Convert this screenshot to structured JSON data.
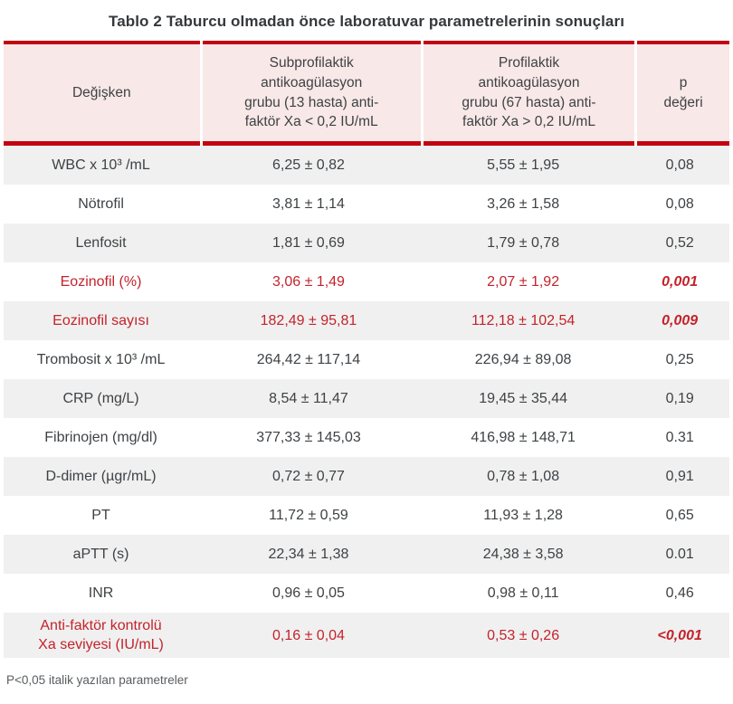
{
  "title": "Tablo 2 Taburcu olmadan önce laboratuvar parametrelerinin sonuçları",
  "table": {
    "columns": [
      {
        "label": "Değişken"
      },
      {
        "label": "Subprofilaktik\nantikoagülasyon\ngrubu (13 hasta) anti-\nfaktör Xa < 0,2 IU/mL"
      },
      {
        "label": "Profilaktik\nantikoagülasyon\ngrubu (67 hasta) anti-\nfaktör Xa > 0,2 IU/mL"
      },
      {
        "label": "p\ndeğeri"
      }
    ],
    "rows": [
      {
        "label": "WBC x 10³ /mL",
        "group1": "6,25 ± 0,82",
        "group2": "5,55 ± 1,95",
        "p": "0,08",
        "highlight": false
      },
      {
        "label": "Nötrofil",
        "group1": "3,81 ± 1,14",
        "group2": "3,26 ± 1,58",
        "p": "0,08",
        "highlight": false
      },
      {
        "label": "Lenfosit",
        "group1": "1,81 ± 0,69",
        "group2": "1,79 ± 0,78",
        "p": "0,52",
        "highlight": false
      },
      {
        "label": "Eozinofil (%)",
        "group1": "3,06 ± 1,49",
        "group2": "2,07 ± 1,92",
        "p": "0,001",
        "highlight": true
      },
      {
        "label": "Eozinofil sayısı",
        "group1": "182,49 ± 95,81",
        "group2": "112,18 ± 102,54",
        "p": "0,009",
        "highlight": true
      },
      {
        "label": "Trombosit x 10³ /mL",
        "group1": "264,42 ± 117,14",
        "group2": "226,94 ± 89,08",
        "p": "0,25",
        "highlight": false
      },
      {
        "label": "CRP (mg/L)",
        "group1": "8,54 ± 11,47",
        "group2": "19,45 ± 35,44",
        "p": "0,19",
        "highlight": false
      },
      {
        "label": "Fibrinojen (mg/dl)",
        "group1": "377,33 ± 145,03",
        "group2": "416,98 ± 148,71",
        "p": "0.31",
        "highlight": false
      },
      {
        "label": "D-dimer (µgr/mL)",
        "group1": "0,72 ± 0,77",
        "group2": "0,78 ± 1,08",
        "p": "0,91",
        "highlight": false
      },
      {
        "label": "PT",
        "group1": "11,72 ± 0,59",
        "group2": "11,93 ± 1,28",
        "p": "0,65",
        "highlight": false
      },
      {
        "label": "aPTT (s)",
        "group1": "22,34 ± 1,38",
        "group2": "24,38 ± 3,58",
        "p": "0.01",
        "highlight": false
      },
      {
        "label": "INR",
        "group1": "0,96 ± 0,05",
        "group2": "0,98 ± 0,11",
        "p": "0,46",
        "highlight": false
      },
      {
        "label": "Anti-faktör kontrolü\nXa seviyesi (IU/mL)",
        "group1": "0,16 ± 0,04",
        "group2": "0,53 ± 0,26",
        "p": "<0,001",
        "highlight": true
      }
    ]
  },
  "footnote": "P<0,05 italik yazılan parametreler",
  "colors": {
    "border_red": "#c20511",
    "header_pink": "#f8e8e7",
    "stripe_grey": "#f0f0f0",
    "highlight_red": "#c3232b",
    "body_text": "#3e4245"
  }
}
